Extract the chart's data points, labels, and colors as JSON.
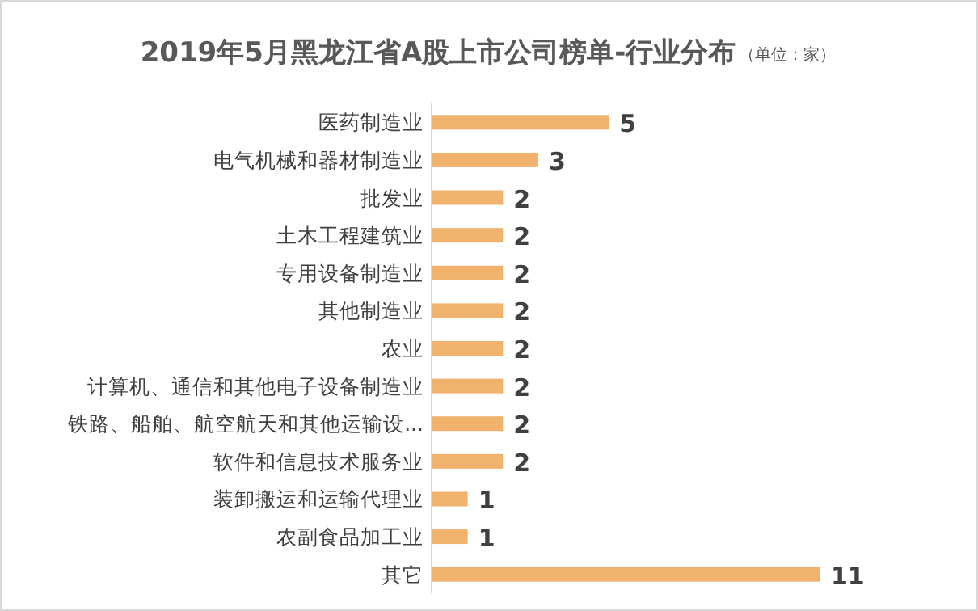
{
  "chart_data": {
    "type": "bar",
    "orientation": "horizontal",
    "title": "2019年5月黑龙江省A股上市公司榜单-行业分布",
    "subtitle": "（单位：家）",
    "categories": [
      "医药制造业",
      "电气机械和器材制造业",
      "批发业",
      "土木工程建筑业",
      "专用设备制造业",
      "其他制造业",
      "农业",
      "计算机、通信和其他电子设备制造业",
      "铁路、船舶、航空航天和其他运输设...",
      "软件和信息技术服务业",
      "装卸搬运和运输代理业",
      "农副食品加工业",
      "其它"
    ],
    "values": [
      5,
      3,
      2,
      2,
      2,
      2,
      2,
      2,
      2,
      2,
      1,
      1,
      11
    ],
    "color": "#f0b26c",
    "data_labels": true
  }
}
